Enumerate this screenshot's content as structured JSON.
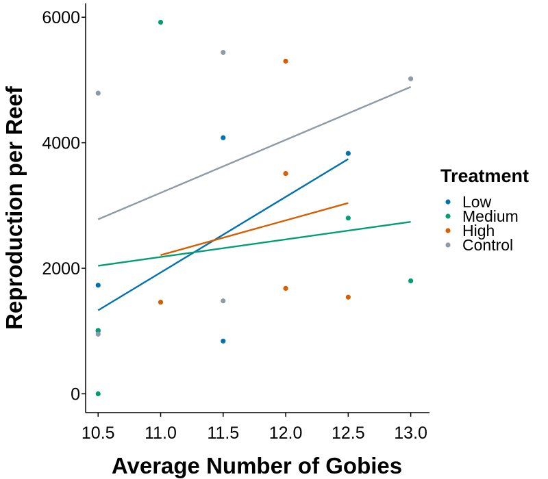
{
  "chart_data": {
    "type": "scatter",
    "xlabel": "Average Number of Gobies",
    "ylabel": "Reproduction per Reef",
    "xlim": [
      10.4,
      13.15
    ],
    "ylim": [
      -300,
      6220
    ],
    "x_ticks": [
      "10.5",
      "11.0",
      "11.5",
      "12.0",
      "12.5",
      "13.0"
    ],
    "y_ticks": [
      "0",
      "2000",
      "4000",
      "6000"
    ],
    "grid": false,
    "legend": {
      "title": "Treatment",
      "position": "right"
    },
    "series": [
      {
        "name": "Low",
        "color": "#0072B2",
        "points": [
          [
            10.5,
            1730
          ],
          [
            10.5,
            1000
          ],
          [
            11.5,
            4080
          ],
          [
            11.5,
            840
          ],
          [
            12.5,
            3830
          ]
        ],
        "trend": [
          [
            10.5,
            1330
          ],
          [
            12.5,
            3740
          ]
        ]
      },
      {
        "name": "Medium",
        "color": "#009E73",
        "points": [
          [
            10.5,
            1010
          ],
          [
            10.5,
            0
          ],
          [
            11.0,
            5920
          ],
          [
            12.5,
            2800
          ],
          [
            13.0,
            1800
          ]
        ],
        "trend": [
          [
            10.5,
            2040
          ],
          [
            13.0,
            2740
          ]
        ]
      },
      {
        "name": "High",
        "color": "#D55E00",
        "points": [
          [
            11.0,
            1460
          ],
          [
            12.0,
            5300
          ],
          [
            12.0,
            3510
          ],
          [
            12.0,
            1680
          ],
          [
            12.5,
            1540
          ]
        ],
        "trend": [
          [
            11.0,
            2210
          ],
          [
            12.5,
            3040
          ]
        ]
      },
      {
        "name": "Control",
        "color": "#8C9BA5",
        "points": [
          [
            10.5,
            4790
          ],
          [
            10.5,
            950
          ],
          [
            11.5,
            5440
          ],
          [
            11.5,
            1480
          ],
          [
            13.0,
            5020
          ]
        ],
        "trend": [
          [
            10.5,
            2780
          ],
          [
            13.0,
            4890
          ]
        ]
      }
    ]
  }
}
